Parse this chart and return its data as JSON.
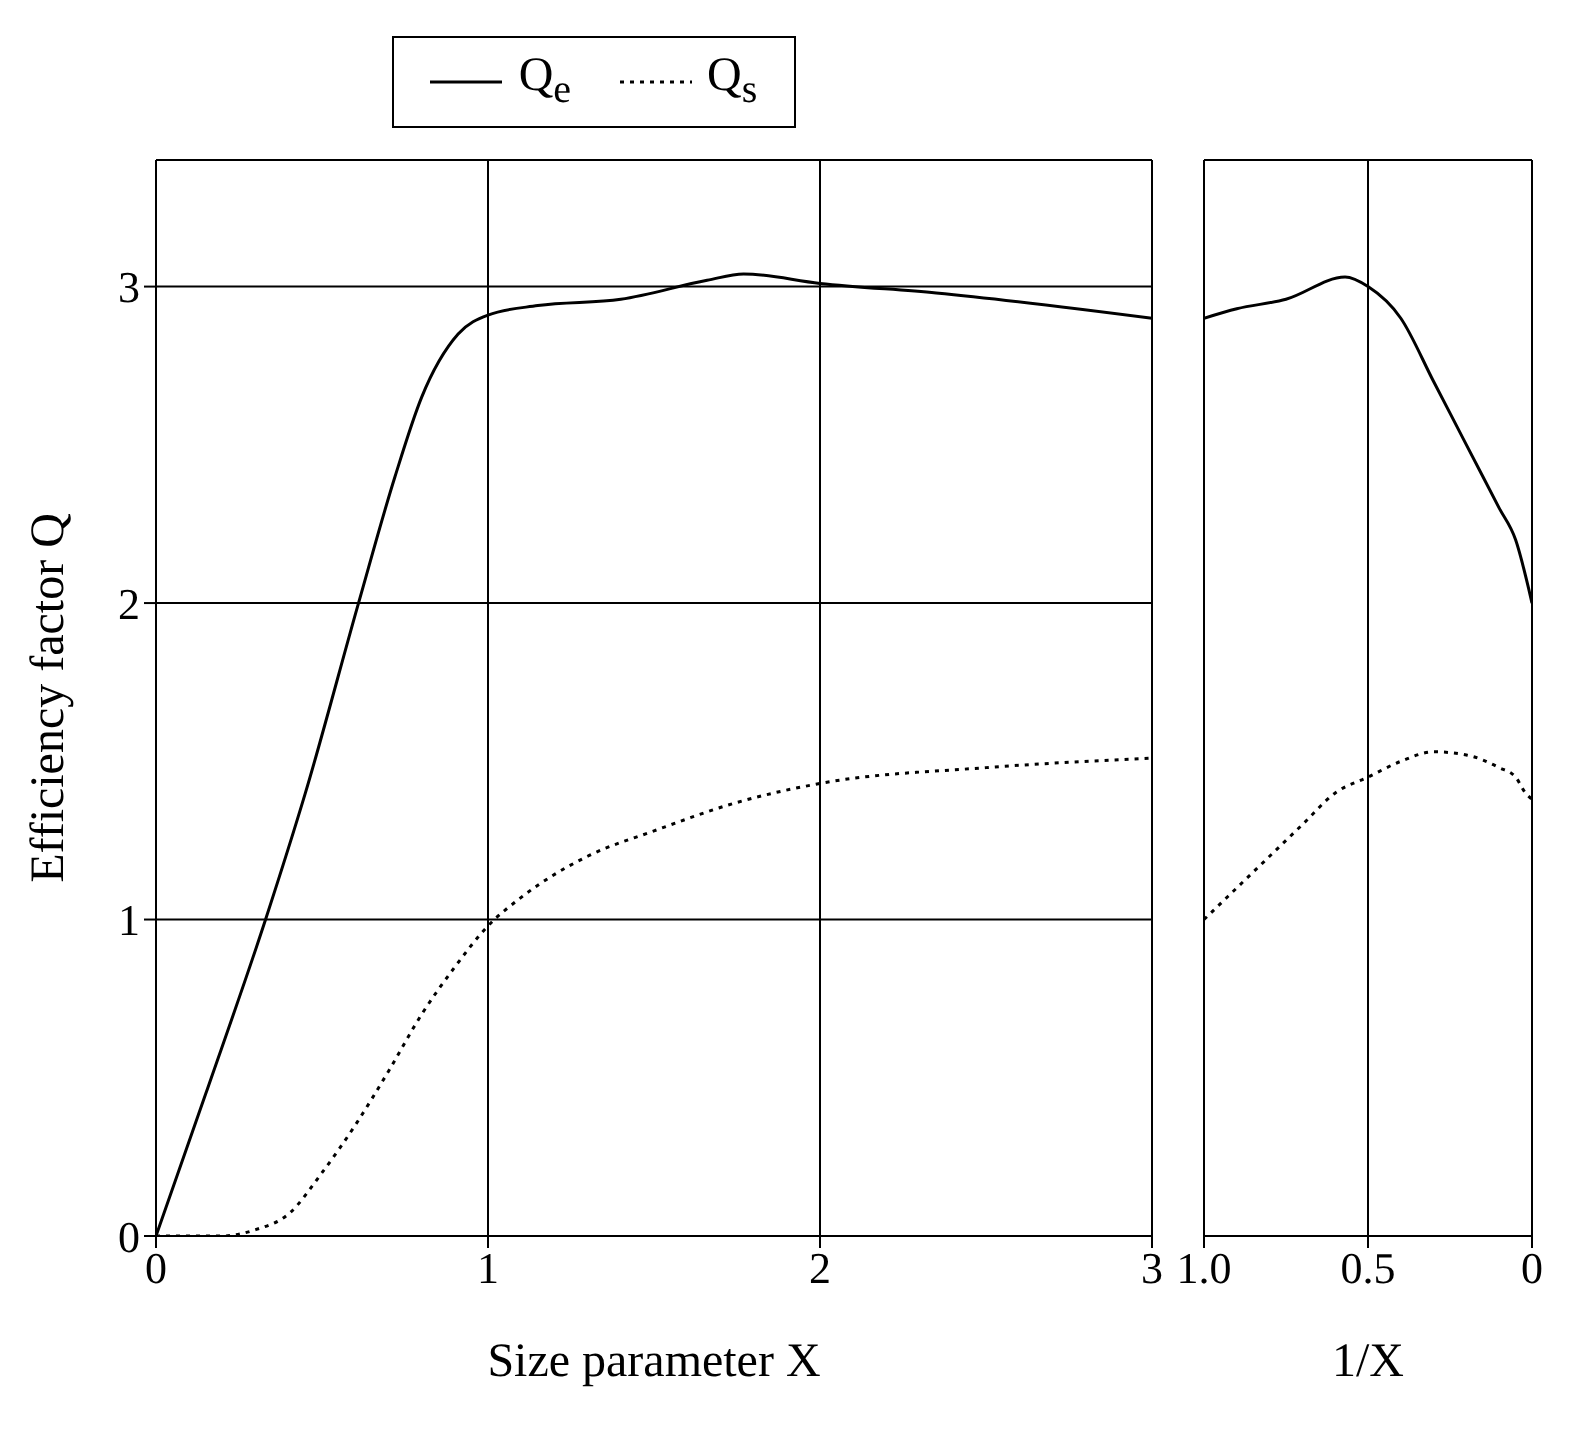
{
  "chart_data": [
    {
      "type": "line",
      "xlabel": "Size parameter X",
      "ylabel": "Efficiency factor Q",
      "xlim": [
        0,
        3
      ],
      "xticks": [
        0,
        1,
        2,
        3
      ],
      "ylim": [
        0,
        3.4
      ],
      "yticks": [
        0,
        1,
        2,
        3
      ],
      "grid": true,
      "legend": "top",
      "marker": "none",
      "series": [
        {
          "name": "Q$_{e}$",
          "color": "#000000",
          "line_style": "solid",
          "x": [
            0,
            0.15,
            0.33,
            0.45,
            0.61,
            0.72,
            0.8,
            0.91,
            1.0,
            1.15,
            1.4,
            1.66,
            1.77,
            2.0,
            2.35,
            3.0
          ],
          "values": [
            0,
            0.45,
            1.0,
            1.4,
            2.0,
            2.4,
            2.65,
            2.85,
            2.91,
            2.94,
            2.96,
            3.02,
            3.04,
            3.01,
            2.98,
            2.9
          ]
        },
        {
          "name": "Q$_{s}$",
          "color": "#000000",
          "line_style": "dotted",
          "x": [
            0,
            0.2,
            0.3,
            0.4,
            0.5,
            0.6,
            0.7,
            0.8,
            0.9,
            1.0,
            1.1,
            1.3,
            1.5,
            1.75,
            2.0,
            2.5,
            3.0
          ],
          "values": [
            0,
            0,
            0.02,
            0.07,
            0.2,
            0.35,
            0.52,
            0.7,
            0.85,
            0.98,
            1.07,
            1.2,
            1.28,
            1.37,
            1.43,
            1.48,
            1.51
          ]
        }
      ]
    },
    {
      "type": "line",
      "xlabel": "1/X",
      "xlim": [
        1,
        0
      ],
      "xticks": [
        {
          "value": 1,
          "label": "1.0"
        },
        0.5,
        0
      ],
      "ylim": [
        0,
        3.4
      ],
      "yticks": [
        0,
        1,
        2,
        3
      ],
      "grid": true,
      "tick_labels": "x",
      "marker": "none",
      "series": [
        {
          "color": "#000000",
          "line_style": "solid",
          "x": [
            1.0,
            0.9,
            0.75,
            0.57,
            0.5,
            0.4,
            0.3,
            0.2,
            0.1,
            0.05,
            0
          ],
          "values": [
            2.9,
            2.93,
            2.96,
            3.03,
            3.0,
            2.9,
            2.7,
            2.5,
            2.3,
            2.2,
            2.0
          ]
        },
        {
          "color": "#000000",
          "line_style": "dotted",
          "x": [
            1.0,
            0.9,
            0.8,
            0.7,
            0.6,
            0.5,
            0.4,
            0.3,
            0.2,
            0.1,
            0.05,
            0.02,
            0
          ],
          "values": [
            1.0,
            1.1,
            1.2,
            1.3,
            1.4,
            1.45,
            1.5,
            1.53,
            1.52,
            1.48,
            1.45,
            1.4,
            1.38
          ]
        }
      ]
    }
  ]
}
